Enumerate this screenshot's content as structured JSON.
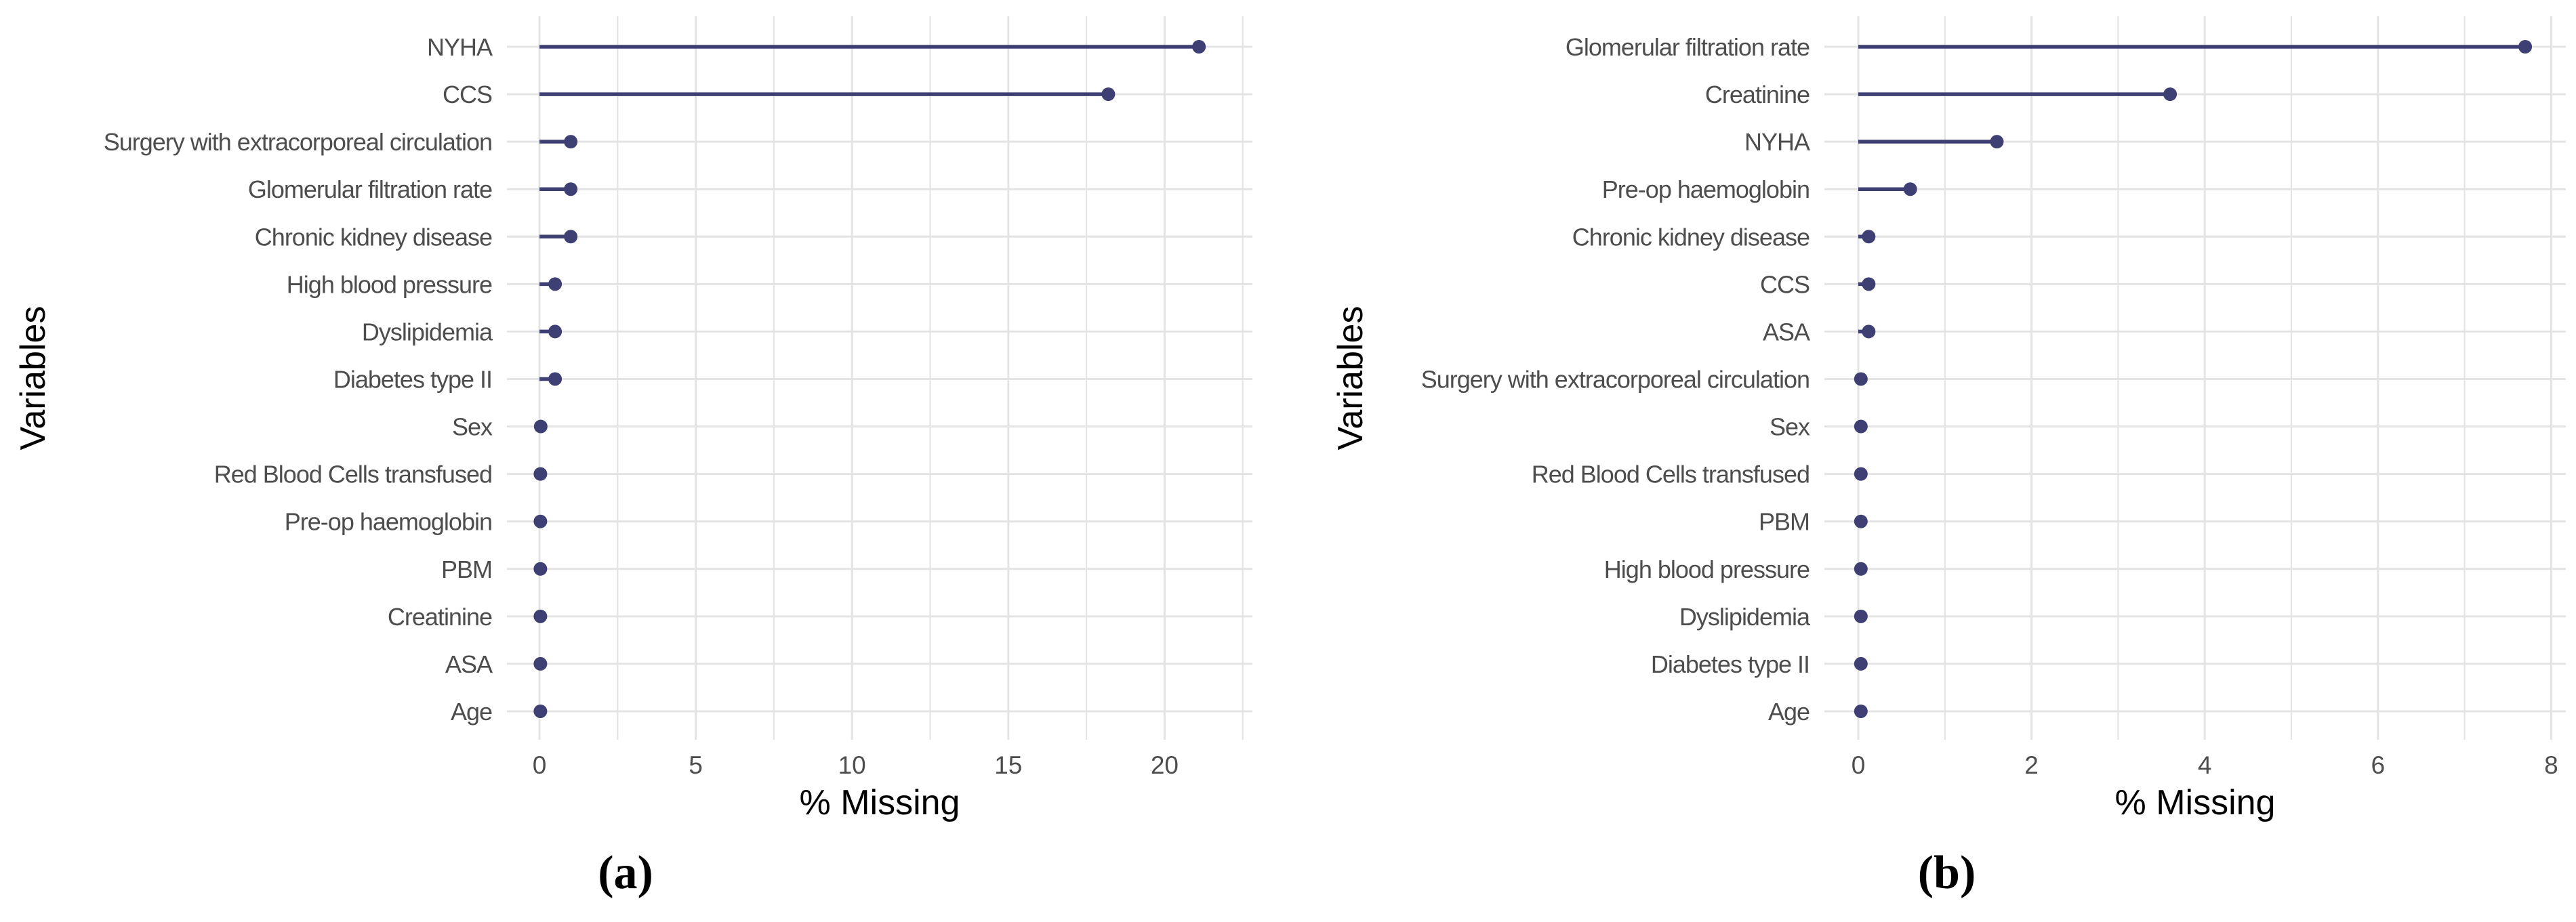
{
  "colors": {
    "point": "#3e3f73",
    "grid": "#e4e4e4",
    "axis_text": "#4d4d4d",
    "axis_title": "#000000",
    "caption": "#000000",
    "background": "#ffffff"
  },
  "chart_data": [
    {
      "type": "bar",
      "variant": "lollipop",
      "orientation": "horizontal",
      "caption": "(a)",
      "title": "",
      "xlabel": "% Missing",
      "ylabel": "Variables",
      "categories": [
        "NYHA",
        "CCS",
        "Surgery with extracorporeal circulation",
        "Glomerular filtration rate",
        "Chronic kidney disease",
        "High blood pressure",
        "Dyslipidemia",
        "Diabetes type II",
        "Sex",
        "Red Blood Cells transfused",
        "Pre-op haemoglobin",
        "PBM",
        "Creatinine",
        "ASA",
        "Age"
      ],
      "values": [
        21.1,
        18.2,
        1.0,
        1.0,
        1.0,
        0.5,
        0.5,
        0.5,
        0.04,
        0.03,
        0.03,
        0.03,
        0.03,
        0.03,
        0.03
      ],
      "xlim": [
        -1.05,
        22.8
      ],
      "xticks": [
        0,
        5,
        10,
        15,
        20
      ],
      "xtick_labels": [
        "0",
        "5",
        "10",
        "15",
        "20"
      ],
      "xminor": [
        2.5,
        7.5,
        12.5,
        17.5,
        22.5
      ],
      "grid": true,
      "legend": "none"
    },
    {
      "type": "bar",
      "variant": "lollipop",
      "orientation": "horizontal",
      "caption": "(b)",
      "title": "",
      "xlabel": "% Missing",
      "ylabel": "Variables",
      "categories": [
        "Glomerular filtration rate",
        "Creatinine",
        "NYHA",
        "Pre-op haemoglobin",
        "Chronic kidney disease",
        "CCS",
        "ASA",
        "Surgery with extracorporeal circulation",
        "Sex",
        "Red Blood Cells transfused",
        "PBM",
        "High blood pressure",
        "Dyslipidemia",
        "Diabetes type II",
        "Age"
      ],
      "values": [
        7.7,
        3.6,
        1.6,
        0.6,
        0.12,
        0.12,
        0.12,
        0.03,
        0.03,
        0.03,
        0.03,
        0.03,
        0.03,
        0.03,
        0.03
      ],
      "xlim": [
        -0.39,
        8.15
      ],
      "xticks": [
        0,
        2,
        4,
        6,
        8
      ],
      "xtick_labels": [
        "0",
        "2",
        "4",
        "6",
        "8"
      ],
      "xminor": [
        1,
        3,
        5,
        7
      ],
      "grid": true,
      "legend": "none"
    }
  ]
}
